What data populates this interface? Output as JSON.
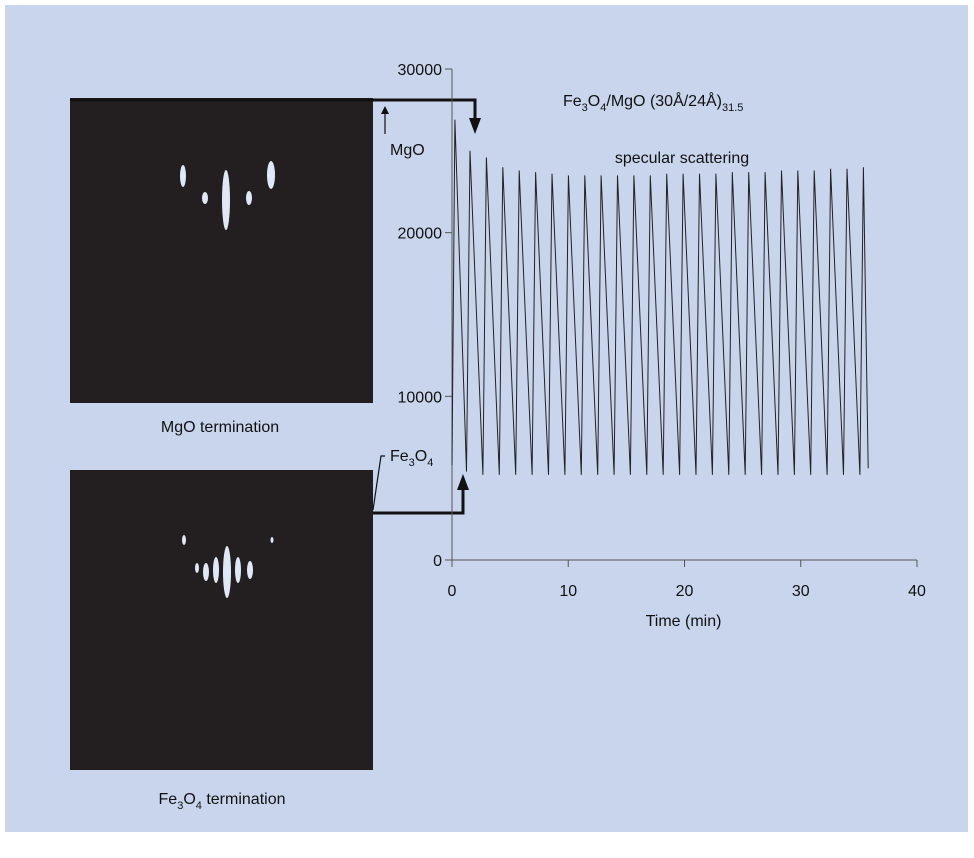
{
  "chart_data": {
    "type": "line",
    "title": [
      "Fe",
      "3",
      "O",
      "4",
      "/MgO (30Å/24Å)",
      "31.5"
    ],
    "annotations": {
      "specular": "specular scattering",
      "mgo": "MgO",
      "fe3o4": [
        "Fe",
        "3",
        "O",
        "4"
      ]
    },
    "x_label": "Time (min)",
    "xlim": [
      0,
      40
    ],
    "xticks": [
      0,
      10,
      20,
      30,
      40
    ],
    "ylim": [
      0,
      30000
    ],
    "yticks": [
      0,
      10000,
      20000,
      30000
    ],
    "color": "#222222",
    "x": [
      0,
      0.25,
      1.25,
      1.55,
      2.66,
      2.96,
      4.07,
      4.37,
      5.48,
      5.78,
      6.89,
      7.19,
      8.3,
      8.6,
      9.71,
      10.01,
      11.12,
      11.42,
      12.53,
      12.83,
      13.94,
      14.24,
      15.35,
      15.65,
      16.76,
      17.06,
      18.17,
      18.47,
      19.58,
      19.88,
      20.99,
      21.29,
      22.4,
      22.7,
      23.81,
      24.11,
      25.22,
      25.52,
      26.63,
      26.93,
      28.04,
      28.34,
      29.45,
      29.75,
      30.86,
      31.16,
      32.27,
      32.57,
      33.68,
      33.98,
      35.09,
      35.39,
      35.8
    ],
    "values": [
      5800,
      26900,
      5400,
      25000,
      5200,
      24600,
      5200,
      24000,
      5200,
      23800,
      5200,
      23700,
      5200,
      23600,
      5200,
      23500,
      5200,
      23500,
      5200,
      23500,
      5200,
      23500,
      5200,
      23500,
      5200,
      23500,
      5200,
      23600,
      5200,
      23600,
      5200,
      23600,
      5200,
      23600,
      5200,
      23700,
      5200,
      23700,
      5200,
      23700,
      5200,
      23800,
      5200,
      23800,
      5200,
      23800,
      5200,
      23900,
      5200,
      23900,
      5200,
      24000,
      5600
    ]
  },
  "images": [
    {
      "caption": [
        "MgO termination"
      ]
    },
    {
      "caption": [
        "Fe",
        "3",
        "O",
        "4",
        " termination"
      ]
    }
  ]
}
